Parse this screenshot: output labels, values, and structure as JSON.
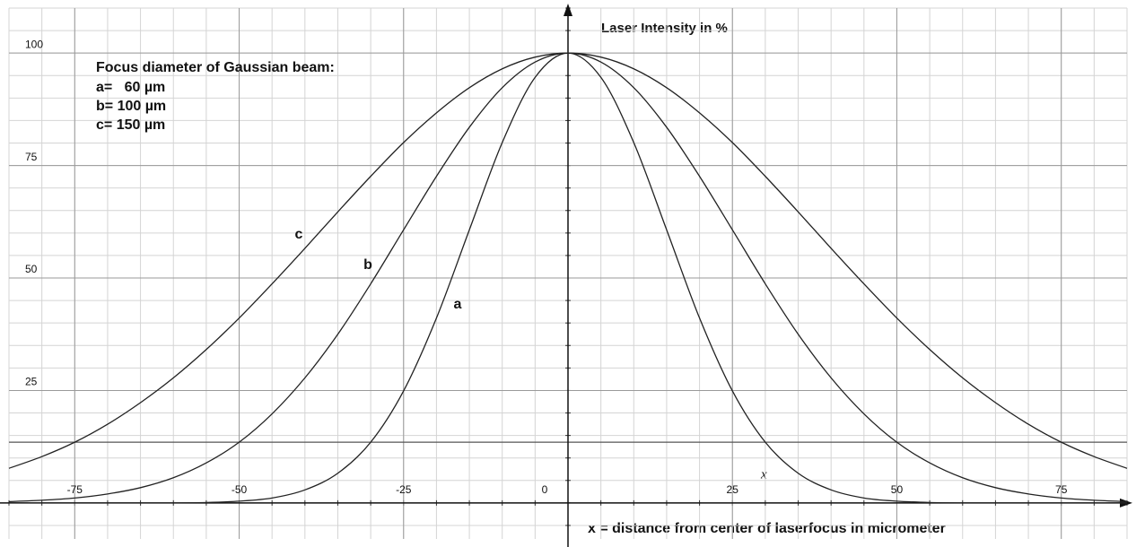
{
  "chart_data": {
    "type": "line",
    "title": "Laser Intensity in %",
    "x_label": "x =  distance from center of laserfocus in micrometer",
    "x_marker": "x",
    "legend_title": "Focus diameter of Gaussian beam:",
    "legend_entries": [
      "a=   60 µm",
      "b= 100 µm",
      "c= 150 µm"
    ],
    "x": [
      -85,
      -80,
      -75,
      -70,
      -65,
      -60,
      -55,
      -50,
      -45,
      -40,
      -35,
      -30,
      -25,
      -20,
      -15,
      -10,
      -5,
      0,
      5,
      10,
      15,
      20,
      25,
      30,
      35,
      40,
      45,
      50,
      55,
      60,
      65,
      70,
      75,
      80,
      85
    ],
    "series": [
      {
        "name": "a",
        "color": "#222222",
        "values": [
          0,
          0,
          0,
          0,
          0,
          0,
          0.1,
          0.4,
          1.1,
          2.9,
          6.6,
          13.5,
          24.9,
          41.1,
          60.7,
          80.1,
          94.6,
          100,
          94.6,
          80.1,
          60.7,
          41.1,
          24.9,
          13.5,
          6.6,
          2.9,
          1.1,
          0.4,
          0.1,
          0,
          0,
          0,
          0,
          0,
          0
        ]
      },
      {
        "name": "b",
        "color": "#222222",
        "values": [
          0.3,
          0.6,
          1.1,
          2.0,
          3.4,
          5.6,
          8.9,
          13.5,
          19.8,
          27.8,
          37.5,
          48.7,
          60.7,
          72.6,
          83.5,
          92.3,
          98.0,
          100,
          98.0,
          92.3,
          83.5,
          72.6,
          60.7,
          48.7,
          37.5,
          27.8,
          19.8,
          13.5,
          8.9,
          5.6,
          3.4,
          2.0,
          1.1,
          0.6,
          0.3
        ]
      },
      {
        "name": "c",
        "color": "#222222",
        "values": [
          7.7,
          10.3,
          13.5,
          17.5,
          22.3,
          27.8,
          34.1,
          41.1,
          48.7,
          56.6,
          64.7,
          72.6,
          80.1,
          86.7,
          92.3,
          96.5,
          99.1,
          100,
          99.1,
          96.5,
          92.3,
          86.7,
          80.1,
          72.6,
          64.7,
          56.6,
          48.7,
          41.1,
          34.1,
          27.8,
          22.3,
          17.5,
          13.5,
          10.3,
          7.7
        ]
      }
    ],
    "reference_line": 13.5,
    "xlim": [
      -85,
      85
    ],
    "ylim": [
      -8,
      110
    ],
    "xticks": [
      -75,
      -50,
      -25,
      0,
      25,
      50,
      75
    ],
    "yticks": [
      25,
      50,
      75,
      100
    ],
    "xminor_ticks": [
      -85,
      -80,
      -75,
      -70,
      -65,
      -60,
      -55,
      -50,
      -45,
      -40,
      -35,
      -30,
      -25,
      -20,
      -15,
      -10,
      -5,
      0,
      5,
      10,
      15,
      20,
      25,
      30,
      35,
      40,
      45,
      50,
      55,
      60,
      65,
      70,
      75,
      80,
      85
    ],
    "yminor_ticks": [
      -5,
      0,
      5,
      10,
      15,
      20,
      25,
      30,
      35,
      40,
      45,
      50,
      55,
      60,
      65,
      70,
      75,
      80,
      85,
      90,
      95,
      100,
      105,
      110
    ],
    "grid": true
  }
}
